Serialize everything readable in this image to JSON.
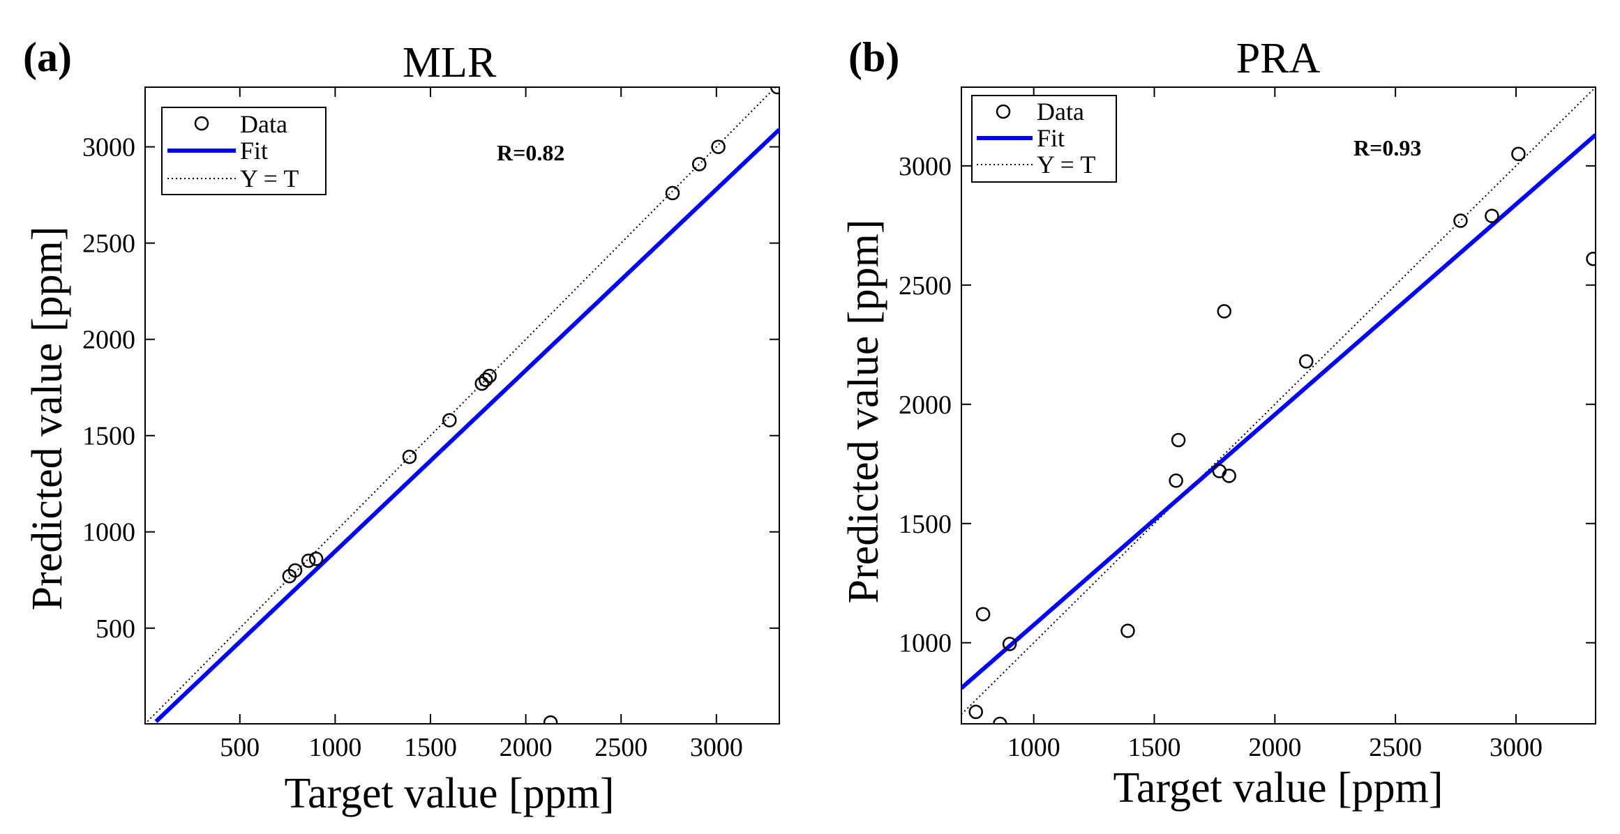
{
  "chart_data": [
    {
      "type": "scatter",
      "panel_label": "(a)",
      "title": "MLR",
      "xlabel": "Target value [ppm]",
      "ylabel": "Predicted value [ppm]",
      "xlim": [
        3,
        3330
      ],
      "ylim": [
        3,
        3310
      ],
      "xticks": [
        500,
        1000,
        1500,
        2000,
        2500,
        3000
      ],
      "yticks": [
        500,
        1000,
        1500,
        2000,
        2500,
        3000
      ],
      "grid": false,
      "legend_position": "top-left",
      "legend": [
        "Data",
        "Fit",
        "Y = T"
      ],
      "annotation": "R=0.82",
      "fit_line": {
        "x": [
          60,
          3330
        ],
        "y": [
          15,
          3090
        ]
      },
      "identity_line": {
        "x": [
          0,
          3330
        ],
        "y": [
          0,
          3330
        ]
      },
      "series": [
        {
          "name": "Data",
          "x": [
            760,
            790,
            860,
            900,
            1390,
            1600,
            1770,
            1790,
            1810,
            2130,
            2770,
            2910,
            3010,
            3320
          ],
          "y": [
            770,
            800,
            850,
            860,
            1390,
            1580,
            1770,
            1790,
            1810,
            10,
            2760,
            2910,
            3000,
            3310
          ]
        }
      ]
    },
    {
      "type": "scatter",
      "panel_label": "(b)",
      "title": "PRA",
      "xlabel": "Target value [ppm]",
      "ylabel": "Predicted value [ppm]",
      "xlim": [
        700,
        3330
      ],
      "ylim": [
        660,
        3330
      ],
      "xticks": [
        1000,
        1500,
        2000,
        2500,
        3000
      ],
      "yticks": [
        1000,
        1500,
        2000,
        2500,
        3000
      ],
      "grid": false,
      "legend_position": "top-left",
      "legend": [
        "Data",
        "Fit",
        "Y = T"
      ],
      "annotation": "R=0.93",
      "fit_line": {
        "x": [
          700,
          3330
        ],
        "y": [
          810,
          3130
        ]
      },
      "identity_line": {
        "x": [
          700,
          3330
        ],
        "y": [
          700,
          3330
        ]
      },
      "series": [
        {
          "name": "Data",
          "x": [
            760,
            790,
            860,
            900,
            1390,
            1590,
            1600,
            1770,
            1790,
            1810,
            2130,
            2770,
            2900,
            3010,
            3320
          ],
          "y": [
            710,
            1120,
            660,
            995,
            1050,
            1680,
            1850,
            1720,
            2390,
            1700,
            2180,
            2770,
            2790,
            3050,
            2610
          ]
        }
      ]
    }
  ]
}
